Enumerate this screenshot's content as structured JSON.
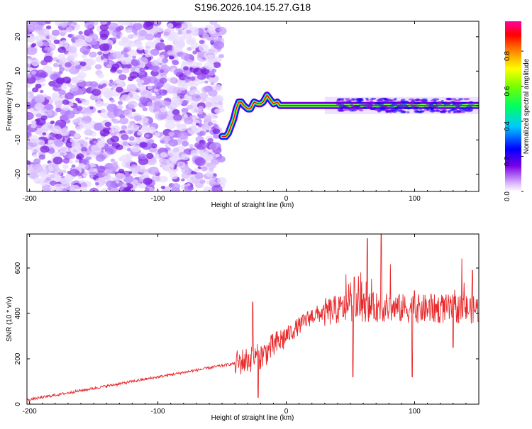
{
  "chart_data": [
    {
      "type": "heatmap",
      "title": "S196.2026.104.15.27.G18",
      "xlabel": "Height of straight line (km)",
      "ylabel": "Frequency (Hz)",
      "xlim": [
        -202,
        150
      ],
      "ylim": [
        -25,
        24.5
      ],
      "xticks": [
        -200,
        -100,
        0,
        100
      ],
      "yticks": [
        -20,
        -10,
        0,
        10,
        20
      ],
      "colorbar": {
        "label": "Normalized spectral amplitude",
        "range": [
          0,
          0.97
        ],
        "ticks": [
          "0.0",
          "0.2",
          "0.4",
          "0.6",
          "0.8"
        ],
        "tick_values": [
          0,
          0.2,
          0.4,
          0.6,
          0.8
        ]
      },
      "noise_region": {
        "x": [
          -202,
          -50
        ],
        "y": [
          -25,
          24.5
        ]
      },
      "signal_path": {
        "x": [
          -50,
          -47,
          -45,
          -43,
          -41,
          -39,
          -37,
          -35,
          -33,
          -30,
          -28,
          -25,
          -22,
          -20,
          -18,
          -15,
          -13,
          -10,
          -7,
          -5,
          -2,
          0,
          5,
          20,
          60,
          100,
          150
        ],
        "y": [
          -9,
          -9,
          -8,
          -6,
          -4,
          -1,
          1,
          1,
          0,
          -1,
          -1,
          1,
          0.5,
          0.5,
          1,
          3,
          2,
          0.5,
          1,
          0,
          0,
          0,
          0,
          0,
          0,
          0,
          0
        ]
      }
    },
    {
      "type": "line",
      "title": "",
      "xlabel": "Height of straight line (km)",
      "ylabel": "SNR (10 * v/v)",
      "xlim": [
        -202,
        150
      ],
      "ylim": [
        0,
        750
      ],
      "xticks": [
        -200,
        -100,
        0,
        100
      ],
      "yticks": [
        0,
        200,
        400,
        600
      ],
      "color": "#e8282a",
      "segments": [
        {
          "x": [
            -202,
            -40
          ],
          "level": 18
        },
        {
          "x": [
            -40,
            -20
          ],
          "level": 180
        },
        {
          "x": [
            -20,
            0
          ],
          "level": 210
        },
        {
          "x": [
            0,
            20
          ],
          "level": 300
        },
        {
          "x": [
            20,
            50
          ],
          "level": 390
        },
        {
          "x": [
            50,
            100
          ],
          "level": 430
        },
        {
          "x": [
            100,
            150
          ],
          "level": 420
        }
      ],
      "peaks": [
        {
          "x": -26,
          "y": 450
        },
        {
          "x": 53,
          "y": 560
        },
        {
          "x": 63,
          "y": 730
        },
        {
          "x": 74,
          "y": 750
        },
        {
          "x": 100,
          "y": 500
        },
        {
          "x": 145,
          "y": 590
        }
      ],
      "dips": [
        {
          "x": -22,
          "y": 30
        },
        {
          "x": 52,
          "y": 120
        },
        {
          "x": 98,
          "y": 120
        },
        {
          "x": 130,
          "y": 250
        }
      ]
    }
  ]
}
